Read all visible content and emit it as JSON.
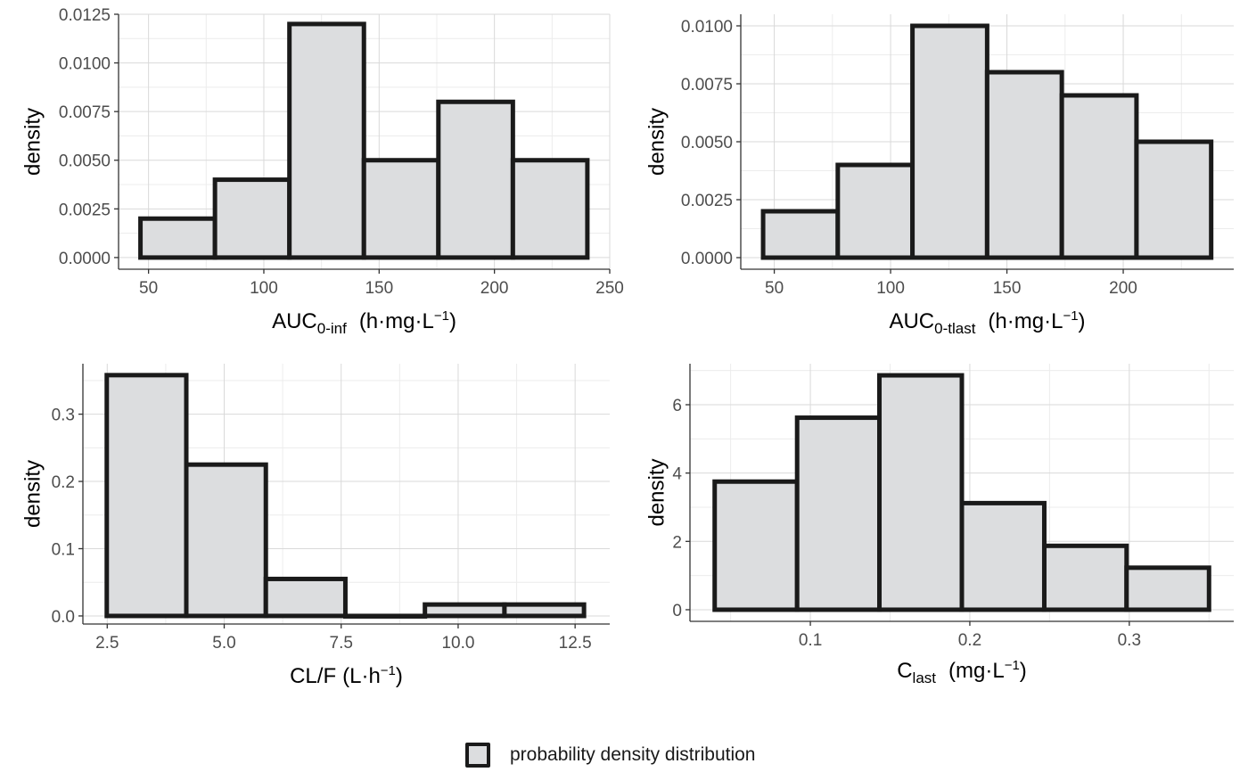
{
  "chart_data": [
    {
      "type": "histogram",
      "id": "auc_inf",
      "ylabel": "density",
      "xlabel": {
        "main": "AUC",
        "sub": "0-inf",
        "units": "(h·mg·L",
        "sup": "−1",
        "close": ")"
      },
      "xlim": [
        37,
        250
      ],
      "ylim": [
        -0.0006,
        0.0125
      ],
      "x_ticks": [
        50,
        100,
        150,
        200,
        250
      ],
      "x_tick_labels": [
        "50",
        "100",
        "150",
        "200",
        "250"
      ],
      "y_ticks": [
        0,
        0.0025,
        0.005,
        0.0075,
        0.01,
        0.0125
      ],
      "y_tick_labels": [
        "0.0000",
        "0.0025",
        "0.0050",
        "0.0075",
        "0.0100",
        "0.0125"
      ],
      "bins": [
        {
          "x0": 46.5,
          "x1": 78.8,
          "density": 0.002
        },
        {
          "x0": 78.8,
          "x1": 111.1,
          "density": 0.004
        },
        {
          "x0": 111.1,
          "x1": 143.4,
          "density": 0.012
        },
        {
          "x0": 143.4,
          "x1": 175.7,
          "density": 0.005
        },
        {
          "x0": 175.7,
          "x1": 208.0,
          "density": 0.008
        },
        {
          "x0": 208.0,
          "x1": 240.3,
          "density": 0.005
        }
      ]
    },
    {
      "type": "histogram",
      "id": "auc_tlast",
      "ylabel": "density",
      "xlabel": {
        "main": "AUC",
        "sub": "0-tlast",
        "units": "(h·mg·L",
        "sup": "−1",
        "close": ")"
      },
      "xlim": [
        35.6,
        247.5
      ],
      "ylim": [
        -0.0005,
        0.0105
      ],
      "x_ticks": [
        50,
        100,
        150,
        200
      ],
      "x_tick_labels": [
        "50",
        "100",
        "150",
        "200"
      ],
      "y_ticks": [
        0,
        0.0025,
        0.005,
        0.0075,
        0.01
      ],
      "y_tick_labels": [
        "0.0000",
        "0.0025",
        "0.0050",
        "0.0075",
        "0.0100"
      ],
      "bins": [
        {
          "x0": 45.2,
          "x1": 77.3,
          "density": 0.002
        },
        {
          "x0": 77.3,
          "x1": 109.4,
          "density": 0.004
        },
        {
          "x0": 109.4,
          "x1": 141.5,
          "density": 0.01
        },
        {
          "x0": 141.5,
          "x1": 173.6,
          "density": 0.008
        },
        {
          "x0": 173.6,
          "x1": 205.7,
          "density": 0.007
        },
        {
          "x0": 205.7,
          "x1": 237.8,
          "density": 0.005
        }
      ]
    },
    {
      "type": "histogram",
      "id": "cl_f",
      "ylabel": "density",
      "xlabel": {
        "main": "CL/F",
        "sub": "",
        "units": "(L·h",
        "sup": "−1",
        "close": ")"
      },
      "xlim": [
        1.98,
        13.24
      ],
      "ylim": [
        -0.012,
        0.375
      ],
      "x_ticks": [
        2.5,
        5,
        7.5,
        10,
        12.5
      ],
      "x_tick_labels": [
        "2.5",
        "5.0",
        "7.5",
        "10.0",
        "12.5"
      ],
      "y_ticks": [
        0,
        0.1,
        0.2,
        0.3
      ],
      "y_tick_labels": [
        "0.0",
        "0.1",
        "0.2",
        "0.3"
      ],
      "bins": [
        {
          "x0": 2.49,
          "x1": 4.19,
          "density": 0.358
        },
        {
          "x0": 4.19,
          "x1": 5.89,
          "density": 0.225
        },
        {
          "x0": 5.89,
          "x1": 7.59,
          "density": 0.055
        },
        {
          "x0": 7.59,
          "x1": 9.29,
          "density": 0.0
        },
        {
          "x0": 9.29,
          "x1": 10.99,
          "density": 0.017
        },
        {
          "x0": 10.99,
          "x1": 12.69,
          "density": 0.017
        }
      ]
    },
    {
      "type": "histogram",
      "id": "c_last",
      "ylabel": "density",
      "xlabel": {
        "main": "C",
        "sub": "last",
        "units": "(mg·L",
        "sup": "−1",
        "close": ")"
      },
      "xlim": [
        0.0245,
        0.3655
      ],
      "ylim": [
        -0.34,
        7.2
      ],
      "x_ticks": [
        0.1,
        0.2,
        0.3
      ],
      "x_tick_labels": [
        "0.1",
        "0.2",
        "0.3"
      ],
      "y_ticks": [
        0,
        2,
        4,
        6
      ],
      "y_tick_labels": [
        "0",
        "2",
        "4",
        "6"
      ],
      "bins": [
        {
          "x0": 0.04,
          "x1": 0.0917,
          "density": 3.75
        },
        {
          "x0": 0.0917,
          "x1": 0.1433,
          "density": 5.62
        },
        {
          "x0": 0.1433,
          "x1": 0.195,
          "density": 6.86
        },
        {
          "x0": 0.195,
          "x1": 0.2467,
          "density": 3.12
        },
        {
          "x0": 0.2467,
          "x1": 0.2983,
          "density": 1.87
        },
        {
          "x0": 0.2983,
          "x1": 0.35,
          "density": 1.23
        }
      ]
    }
  ],
  "legend": {
    "label": "probability density distribution"
  },
  "colors": {
    "fill": "#dcdddf",
    "outline": "#1a1a1a"
  }
}
